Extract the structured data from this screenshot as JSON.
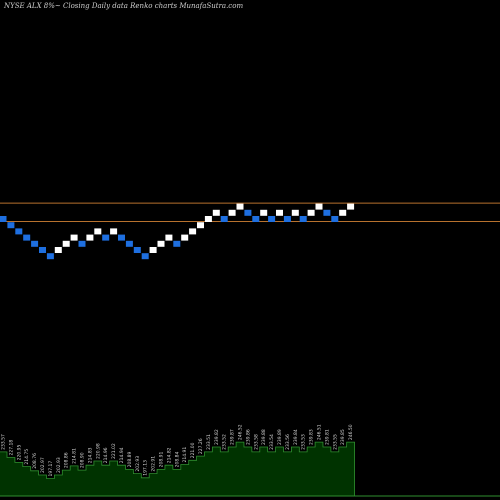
{
  "header": {
    "title": "NYSE ALX  8%~  Closing Daily data  Renko  charts MunafaSutra.com"
  },
  "colors": {
    "background": "#000000",
    "up_brick": "#ffffff",
    "down_brick": "#1e6fe0",
    "level_line": "#b8722e",
    "volume_fill": "#003300",
    "volume_stroke": "#2f8f2f",
    "label": "#d8d8d8"
  },
  "chart_data": {
    "type": "renko",
    "bricks": [
      {
        "level": 0,
        "dir": "down"
      },
      {
        "level": -1,
        "dir": "down"
      },
      {
        "level": -2,
        "dir": "down"
      },
      {
        "level": -3,
        "dir": "down"
      },
      {
        "level": -4,
        "dir": "down"
      },
      {
        "level": -5,
        "dir": "down"
      },
      {
        "level": -6,
        "dir": "down"
      },
      {
        "level": -5,
        "dir": "up"
      },
      {
        "level": -4,
        "dir": "up"
      },
      {
        "level": -3,
        "dir": "up"
      },
      {
        "level": -4,
        "dir": "down"
      },
      {
        "level": -3,
        "dir": "up"
      },
      {
        "level": -2,
        "dir": "up"
      },
      {
        "level": -3,
        "dir": "down"
      },
      {
        "level": -2,
        "dir": "up"
      },
      {
        "level": -3,
        "dir": "down"
      },
      {
        "level": -4,
        "dir": "down"
      },
      {
        "level": -5,
        "dir": "down"
      },
      {
        "level": -6,
        "dir": "down"
      },
      {
        "level": -5,
        "dir": "up"
      },
      {
        "level": -4,
        "dir": "up"
      },
      {
        "level": -3,
        "dir": "up"
      },
      {
        "level": -4,
        "dir": "down"
      },
      {
        "level": -3,
        "dir": "up"
      },
      {
        "level": -2,
        "dir": "up"
      },
      {
        "level": -1,
        "dir": "up"
      },
      {
        "level": 0,
        "dir": "up"
      },
      {
        "level": 1,
        "dir": "up"
      },
      {
        "level": 0,
        "dir": "down"
      },
      {
        "level": 1,
        "dir": "up"
      },
      {
        "level": 2,
        "dir": "up"
      },
      {
        "level": 1,
        "dir": "down"
      },
      {
        "level": 0,
        "dir": "down"
      },
      {
        "level": 1,
        "dir": "up"
      },
      {
        "level": 0,
        "dir": "down"
      },
      {
        "level": 1,
        "dir": "up"
      },
      {
        "level": 0,
        "dir": "down"
      },
      {
        "level": 1,
        "dir": "up"
      },
      {
        "level": 0,
        "dir": "down"
      },
      {
        "level": 1,
        "dir": "up"
      },
      {
        "level": 2,
        "dir": "up"
      },
      {
        "level": 1,
        "dir": "down"
      },
      {
        "level": 0,
        "dir": "down"
      },
      {
        "level": 1,
        "dir": "up"
      },
      {
        "level": 2,
        "dir": "up"
      }
    ],
    "level_lines": [
      "upper",
      "lower"
    ],
    "volume": [
      {
        "value": 0.63,
        "label": "233.57"
      },
      {
        "value": 0.55,
        "label": "227.18"
      },
      {
        "value": 0.48,
        "label": "220.95"
      },
      {
        "value": 0.42,
        "label": "214.75"
      },
      {
        "value": 0.36,
        "label": "208.76"
      },
      {
        "value": 0.3,
        "label": "202.97"
      },
      {
        "value": 0.25,
        "label": "197.17"
      },
      {
        "value": 0.3,
        "label": "202.93"
      },
      {
        "value": 0.37,
        "label": "208.86"
      },
      {
        "value": 0.43,
        "label": "214.81"
      },
      {
        "value": 0.37,
        "label": "208.90"
      },
      {
        "value": 0.44,
        "label": "214.83"
      },
      {
        "value": 0.5,
        "label": "220.98"
      },
      {
        "value": 0.44,
        "label": "214.96"
      },
      {
        "value": 0.5,
        "label": "221.02"
      },
      {
        "value": 0.44,
        "label": "214.94"
      },
      {
        "value": 0.38,
        "label": "208.89"
      },
      {
        "value": 0.32,
        "label": "202.93"
      },
      {
        "value": 0.26,
        "label": "197.13"
      },
      {
        "value": 0.32,
        "label": "202.91"
      },
      {
        "value": 0.38,
        "label": "208.91"
      },
      {
        "value": 0.44,
        "label": "214.82"
      },
      {
        "value": 0.38,
        "label": "208.84"
      },
      {
        "value": 0.45,
        "label": "214.91"
      },
      {
        "value": 0.51,
        "label": "221.00"
      },
      {
        "value": 0.57,
        "label": "227.26"
      },
      {
        "value": 0.63,
        "label": "233.51"
      },
      {
        "value": 0.7,
        "label": "239.82"
      },
      {
        "value": 0.63,
        "label": "233.52"
      },
      {
        "value": 0.7,
        "label": "239.87"
      },
      {
        "value": 0.77,
        "label": "246.52"
      },
      {
        "value": 0.7,
        "label": "239.86"
      },
      {
        "value": 0.63,
        "label": "233.58"
      },
      {
        "value": 0.7,
        "label": "239.88"
      },
      {
        "value": 0.63,
        "label": "233.54"
      },
      {
        "value": 0.7,
        "label": "239.89"
      },
      {
        "value": 0.63,
        "label": "233.56"
      },
      {
        "value": 0.7,
        "label": "239.84"
      },
      {
        "value": 0.63,
        "label": "233.53"
      },
      {
        "value": 0.7,
        "label": "239.83"
      },
      {
        "value": 0.77,
        "label": "246.51"
      },
      {
        "value": 0.7,
        "label": "239.81"
      },
      {
        "value": 0.63,
        "label": "233.55"
      },
      {
        "value": 0.7,
        "label": "239.85"
      },
      {
        "value": 0.77,
        "label": "246.50"
      }
    ]
  }
}
